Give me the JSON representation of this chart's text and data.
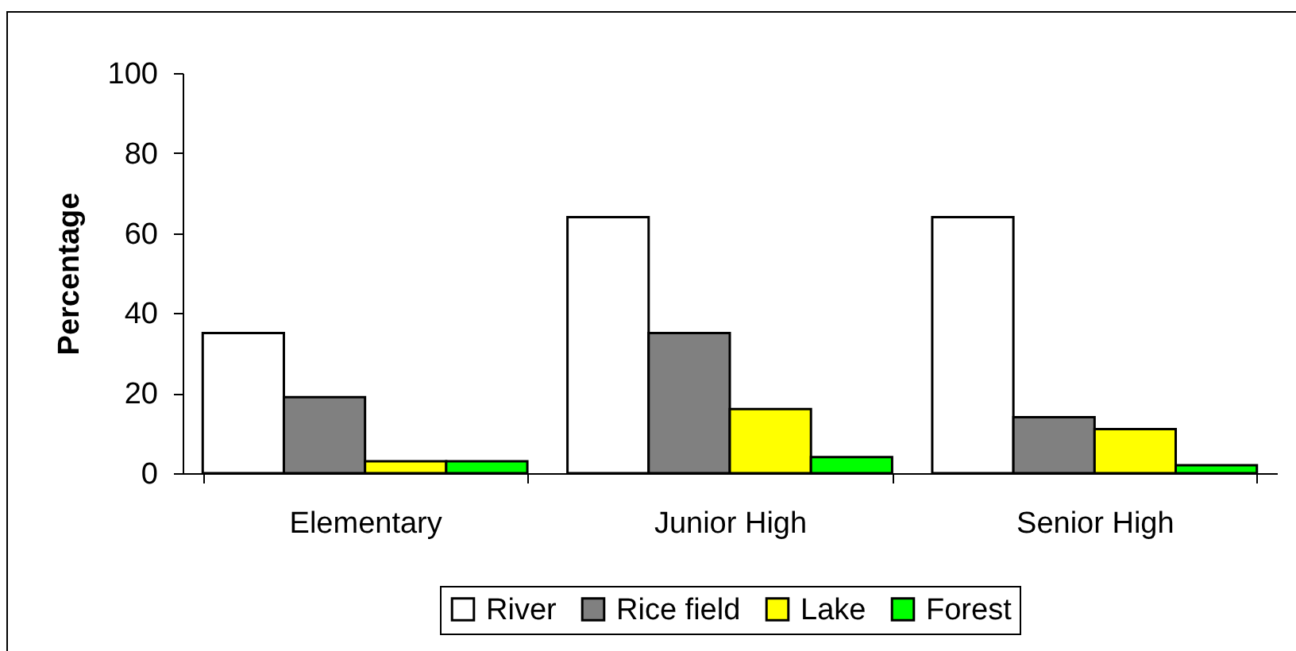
{
  "chart_data": {
    "type": "bar",
    "ylabel": "Percentage",
    "categories": [
      "Elementary",
      "Junior High",
      "Senior High"
    ],
    "series": [
      {
        "name": "River",
        "color": "#ffffff",
        "values": [
          35,
          64,
          64
        ]
      },
      {
        "name": "Rice field",
        "color": "#808080",
        "values": [
          19,
          35,
          14
        ]
      },
      {
        "name": "Lake",
        "color": "#ffff00",
        "values": [
          3,
          16,
          11
        ]
      },
      {
        "name": "Forest",
        "color": "#00ff00",
        "values": [
          3,
          4,
          2
        ]
      }
    ],
    "ylim": [
      0,
      100
    ],
    "yticks": [
      0,
      20,
      40,
      60,
      80,
      100
    ],
    "grid": false,
    "legend": "bottom"
  }
}
